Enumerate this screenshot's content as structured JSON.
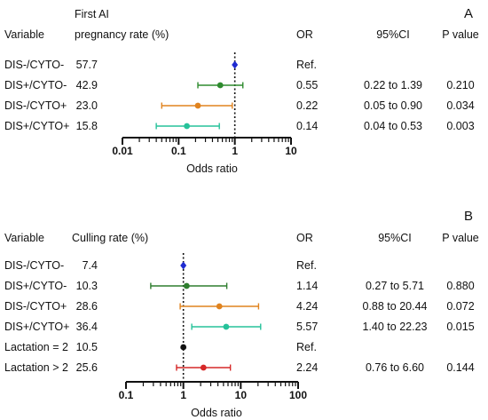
{
  "chart_data": [
    {
      "type": "forest",
      "panel_label": "A",
      "headers": {
        "variable": "Variable",
        "rate": [
          "First AI",
          "pregnancy rate (%)"
        ],
        "or": "OR",
        "ci": "95%CI",
        "p": "P value"
      },
      "xlabel": "Odds ratio",
      "x_scale": "log",
      "xlim": [
        0.01,
        10
      ],
      "x_ticks": [
        0.01,
        0.1,
        1,
        10
      ],
      "x_tick_labels": [
        "0.01",
        "0.1",
        "1",
        "10"
      ],
      "reference_line": 1,
      "rows": [
        {
          "variable": "DIS-/CYTO-",
          "rate": "57.7",
          "or_label": "Ref.",
          "ci_label": "",
          "p_label": "",
          "or": 1,
          "ci_low": null,
          "ci_high": null,
          "color": "#1f2bd1",
          "marker": "diamond"
        },
        {
          "variable": "DIS+/CYTO-",
          "rate": "42.9",
          "or_label": "0.55",
          "ci_label": "0.22 to 1.39",
          "p_label": "0.210",
          "or": 0.55,
          "ci_low": 0.22,
          "ci_high": 1.39,
          "color": "#2e8b2e",
          "marker": "circle"
        },
        {
          "variable": "DIS-/CYTO+",
          "rate": "23.0",
          "or_label": "0.22",
          "ci_label": "0.05 to 0.90",
          "p_label": "0.034",
          "or": 0.22,
          "ci_low": 0.05,
          "ci_high": 0.9,
          "color": "#e0831f",
          "marker": "circle"
        },
        {
          "variable": "DIS+/CYTO+",
          "rate": "15.8",
          "or_label": "0.14",
          "ci_label": "0.04 to 0.53",
          "p_label": "0.003",
          "or": 0.14,
          "ci_low": 0.04,
          "ci_high": 0.53,
          "color": "#26c29a",
          "marker": "circle"
        }
      ]
    },
    {
      "type": "forest",
      "panel_label": "B",
      "headers": {
        "variable": "Variable",
        "rate": [
          "Culling rate (%)"
        ],
        "or": "OR",
        "ci": "95%CI",
        "p": "P value"
      },
      "xlabel": "Odds ratio",
      "x_scale": "log",
      "xlim": [
        0.1,
        100
      ],
      "x_ticks": [
        0.1,
        1,
        10,
        100
      ],
      "x_tick_labels": [
        "0.1",
        "1",
        "10",
        "100"
      ],
      "reference_line": 1,
      "rows": [
        {
          "variable": "DIS-/CYTO-",
          "rate": "7.4",
          "or_label": "Ref.",
          "ci_label": "",
          "p_label": "",
          "or": 1,
          "ci_low": null,
          "ci_high": null,
          "color": "#1f2bd1",
          "marker": "diamond"
        },
        {
          "variable": "DIS+/CYTO-",
          "rate": "10.3",
          "or_label": "1.14",
          "ci_label": "0.27 to 5.71",
          "p_label": "0.880",
          "or": 1.14,
          "ci_low": 0.27,
          "ci_high": 5.71,
          "color": "#2e7d2e",
          "marker": "circle"
        },
        {
          "variable": "DIS-/CYTO+",
          "rate": "28.6",
          "or_label": "4.24",
          "ci_label": "0.88 to 20.44",
          "p_label": "0.072",
          "or": 4.24,
          "ci_low": 0.88,
          "ci_high": 20.44,
          "color": "#e0831f",
          "marker": "circle"
        },
        {
          "variable": "DIS+/CYTO+",
          "rate": "36.4",
          "or_label": "5.57",
          "ci_label": "1.40 to 22.23",
          "p_label": "0.015",
          "or": 5.57,
          "ci_low": 1.4,
          "ci_high": 22.23,
          "color": "#26c29a",
          "marker": "circle"
        },
        {
          "variable": "Lactation = 2",
          "rate": "10.5",
          "or_label": "Ref.",
          "ci_label": "",
          "p_label": "",
          "or": 1,
          "ci_low": null,
          "ci_high": null,
          "color": "#111111",
          "marker": "circle"
        },
        {
          "variable": "Lactation > 2",
          "rate": "25.6",
          "or_label": "2.24",
          "ci_label": "0.76 to 6.60",
          "p_label": "0.144",
          "or": 2.24,
          "ci_low": 0.76,
          "ci_high": 6.6,
          "color": "#d62828",
          "marker": "circle"
        }
      ]
    }
  ]
}
